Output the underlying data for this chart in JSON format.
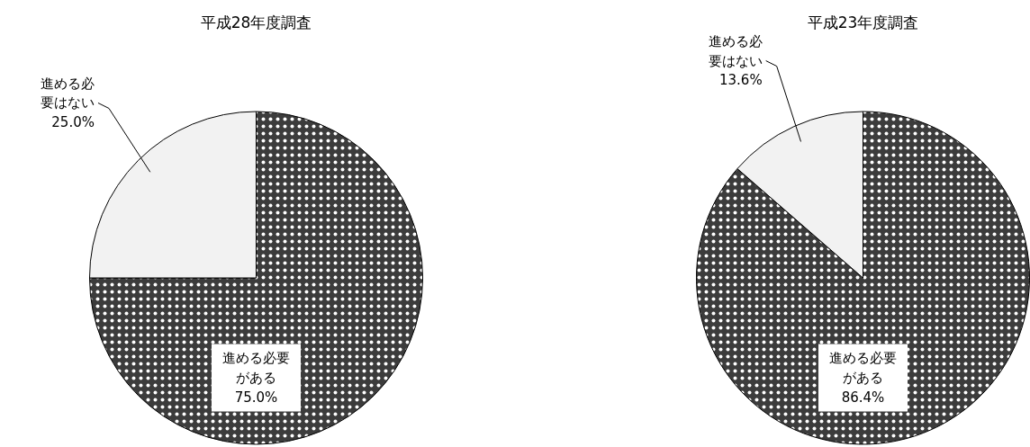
{
  "chart_data": [
    {
      "type": "pie",
      "title": "平成28年度調査",
      "categories": [
        "進める必要がある",
        "進める必要はない"
      ],
      "values": [
        75.0,
        25.0
      ],
      "colors": [
        "#3c3c3c",
        "#f2f2f2"
      ],
      "value_labels": [
        "75.0%",
        "25.0%"
      ]
    },
    {
      "type": "pie",
      "title": "平成23年度調査",
      "categories": [
        "進める必要がある",
        "進める必要はない"
      ],
      "values": [
        86.4,
        13.6
      ],
      "colors": [
        "#3c3c3c",
        "#f2f2f2"
      ],
      "value_labels": [
        "86.4%",
        "13.6%"
      ]
    }
  ]
}
